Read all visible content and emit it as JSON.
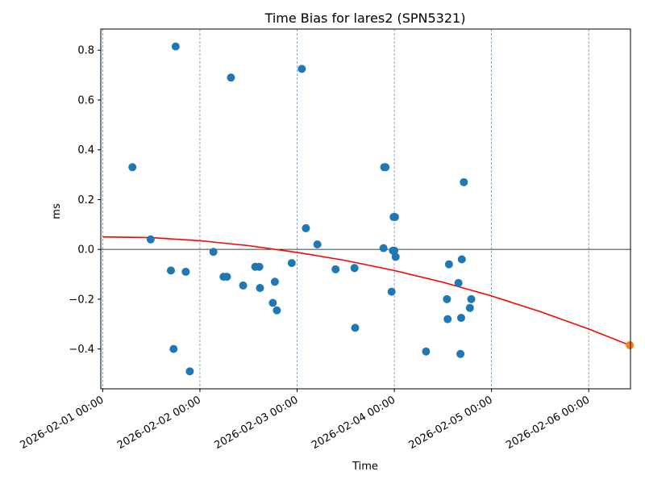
{
  "chart_data": {
    "type": "scatter",
    "title": "Time Bias for lares2 (SPN5321)",
    "xlabel": "Time",
    "ylabel": "ms",
    "x_ticks": [
      "2026-02-01 00:00",
      "2026-02-02 00:00",
      "2026-02-03 00:00",
      "2026-02-04 00:00",
      "2026-02-05 00:00",
      "2026-02-06 00:00"
    ],
    "x_range_days": [
      -0.02,
      5.43
    ],
    "y_ticks": [
      "−0.4",
      "−0.2",
      "0.0",
      "0.2",
      "0.4",
      "0.6",
      "0.8"
    ],
    "y_tick_values": [
      -0.4,
      -0.2,
      0.0,
      0.2,
      0.4,
      0.6,
      0.8
    ],
    "ylim": [
      -0.56,
      0.885
    ],
    "grid": "vertical dashed at day ticks",
    "reference_line_y": 0.0,
    "colors": {
      "points": "#1f77b4",
      "fit": "#ff0000",
      "prediction": "#ff7f0e",
      "grid": "#1f77b4",
      "zero_line": "#000000"
    },
    "points": [
      {
        "x": "2026-02-01 07:20",
        "y": 0.33
      },
      {
        "x": "2026-02-01 11:50",
        "y": 0.04
      },
      {
        "x": "2026-02-01 16:50",
        "y": -0.085
      },
      {
        "x": "2026-02-01 17:30",
        "y": -0.4
      },
      {
        "x": "2026-02-01 18:00",
        "y": 0.815
      },
      {
        "x": "2026-02-01 20:30",
        "y": -0.09
      },
      {
        "x": "2026-02-01 21:30",
        "y": -0.49
      },
      {
        "x": "2026-02-02 03:20",
        "y": -0.01
      },
      {
        "x": "2026-02-02 05:50",
        "y": -0.11
      },
      {
        "x": "2026-02-02 06:40",
        "y": -0.11
      },
      {
        "x": "2026-02-02 07:40",
        "y": 0.69
      },
      {
        "x": "2026-02-02 10:40",
        "y": -0.145
      },
      {
        "x": "2026-02-02 13:40",
        "y": -0.07
      },
      {
        "x": "2026-02-02 14:40",
        "y": -0.07
      },
      {
        "x": "2026-02-02 14:50",
        "y": -0.155
      },
      {
        "x": "2026-02-02 18:00",
        "y": -0.215
      },
      {
        "x": "2026-02-02 18:30",
        "y": -0.13
      },
      {
        "x": "2026-02-02 19:00",
        "y": -0.245
      },
      {
        "x": "2026-02-02 22:40",
        "y": -0.055
      },
      {
        "x": "2026-02-03 01:10",
        "y": 0.725
      },
      {
        "x": "2026-02-03 02:10",
        "y": 0.085
      },
      {
        "x": "2026-02-03 05:00",
        "y": 0.02
      },
      {
        "x": "2026-02-03 09:30",
        "y": -0.08
      },
      {
        "x": "2026-02-03 14:10",
        "y": -0.075
      },
      {
        "x": "2026-02-03 14:20",
        "y": -0.315
      },
      {
        "x": "2026-02-03 21:20",
        "y": 0.005
      },
      {
        "x": "2026-02-03 21:30",
        "y": 0.33
      },
      {
        "x": "2026-02-03 21:50",
        "y": 0.33
      },
      {
        "x": "2026-02-03 23:20",
        "y": -0.17
      },
      {
        "x": "2026-02-03 23:50",
        "y": 0.13
      },
      {
        "x": "2026-02-04 00:10",
        "y": 0.13
      },
      {
        "x": "2026-02-03 23:40",
        "y": -0.005
      },
      {
        "x": "2026-02-04 00:00",
        "y": -0.005
      },
      {
        "x": "2026-02-04 00:20",
        "y": -0.03
      },
      {
        "x": "2026-02-04 07:50",
        "y": -0.41
      },
      {
        "x": "2026-02-04 13:00",
        "y": -0.2
      },
      {
        "x": "2026-02-04 13:10",
        "y": -0.28
      },
      {
        "x": "2026-02-04 13:30",
        "y": -0.06
      },
      {
        "x": "2026-02-04 15:50",
        "y": -0.135
      },
      {
        "x": "2026-02-04 16:20",
        "y": -0.42
      },
      {
        "x": "2026-02-04 16:30",
        "y": -0.275
      },
      {
        "x": "2026-02-04 16:40",
        "y": -0.04
      },
      {
        "x": "2026-02-04 17:10",
        "y": 0.27
      },
      {
        "x": "2026-02-04 18:40",
        "y": -0.235
      },
      {
        "x": "2026-02-04 19:00",
        "y": -0.2
      }
    ],
    "fit_curve": [
      {
        "x": "2026-02-01 00:00",
        "y": 0.05
      },
      {
        "x": "2026-02-01 12:00",
        "y": 0.047
      },
      {
        "x": "2026-02-02 00:00",
        "y": 0.035
      },
      {
        "x": "2026-02-02 12:00",
        "y": 0.015
      },
      {
        "x": "2026-02-03 00:00",
        "y": -0.012
      },
      {
        "x": "2026-02-03 12:00",
        "y": -0.045
      },
      {
        "x": "2026-02-04 00:00",
        "y": -0.085
      },
      {
        "x": "2026-02-04 12:00",
        "y": -0.132
      },
      {
        "x": "2026-02-05 00:00",
        "y": -0.187
      },
      {
        "x": "2026-02-05 12:00",
        "y": -0.25
      },
      {
        "x": "2026-02-06 00:00",
        "y": -0.32
      },
      {
        "x": "2026-02-06 10:10",
        "y": -0.385
      }
    ],
    "prediction_point": {
      "x": "2026-02-06 10:10",
      "y": -0.385
    }
  }
}
